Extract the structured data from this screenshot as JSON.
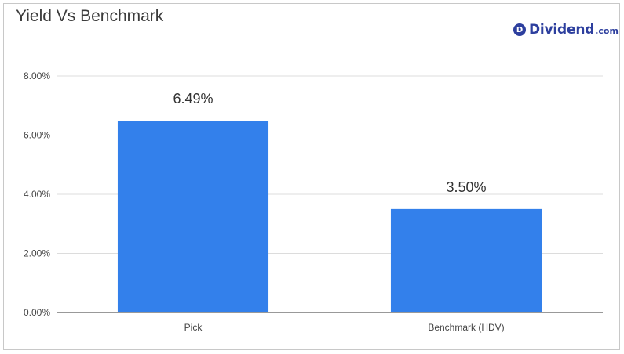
{
  "brand": {
    "badge_letter": "D",
    "name": "Dividend",
    "tld": ".com",
    "color": "#2d3f9e"
  },
  "chart_data": {
    "type": "bar",
    "title": "Yield Vs Benchmark",
    "categories": [
      "Pick",
      "Benchmark (HDV)"
    ],
    "values": [
      6.49,
      3.5
    ],
    "data_labels": [
      "6.49%",
      "3.50%"
    ],
    "yticks": [
      "0.00%",
      "2.00%",
      "4.00%",
      "6.00%",
      "8.00%"
    ],
    "ytick_values": [
      0,
      2,
      4,
      6,
      8
    ],
    "ylim": [
      0,
      8
    ],
    "xlabel": "",
    "ylabel": "",
    "grid": true,
    "legend": "none",
    "bar_color": "#3380eb"
  }
}
